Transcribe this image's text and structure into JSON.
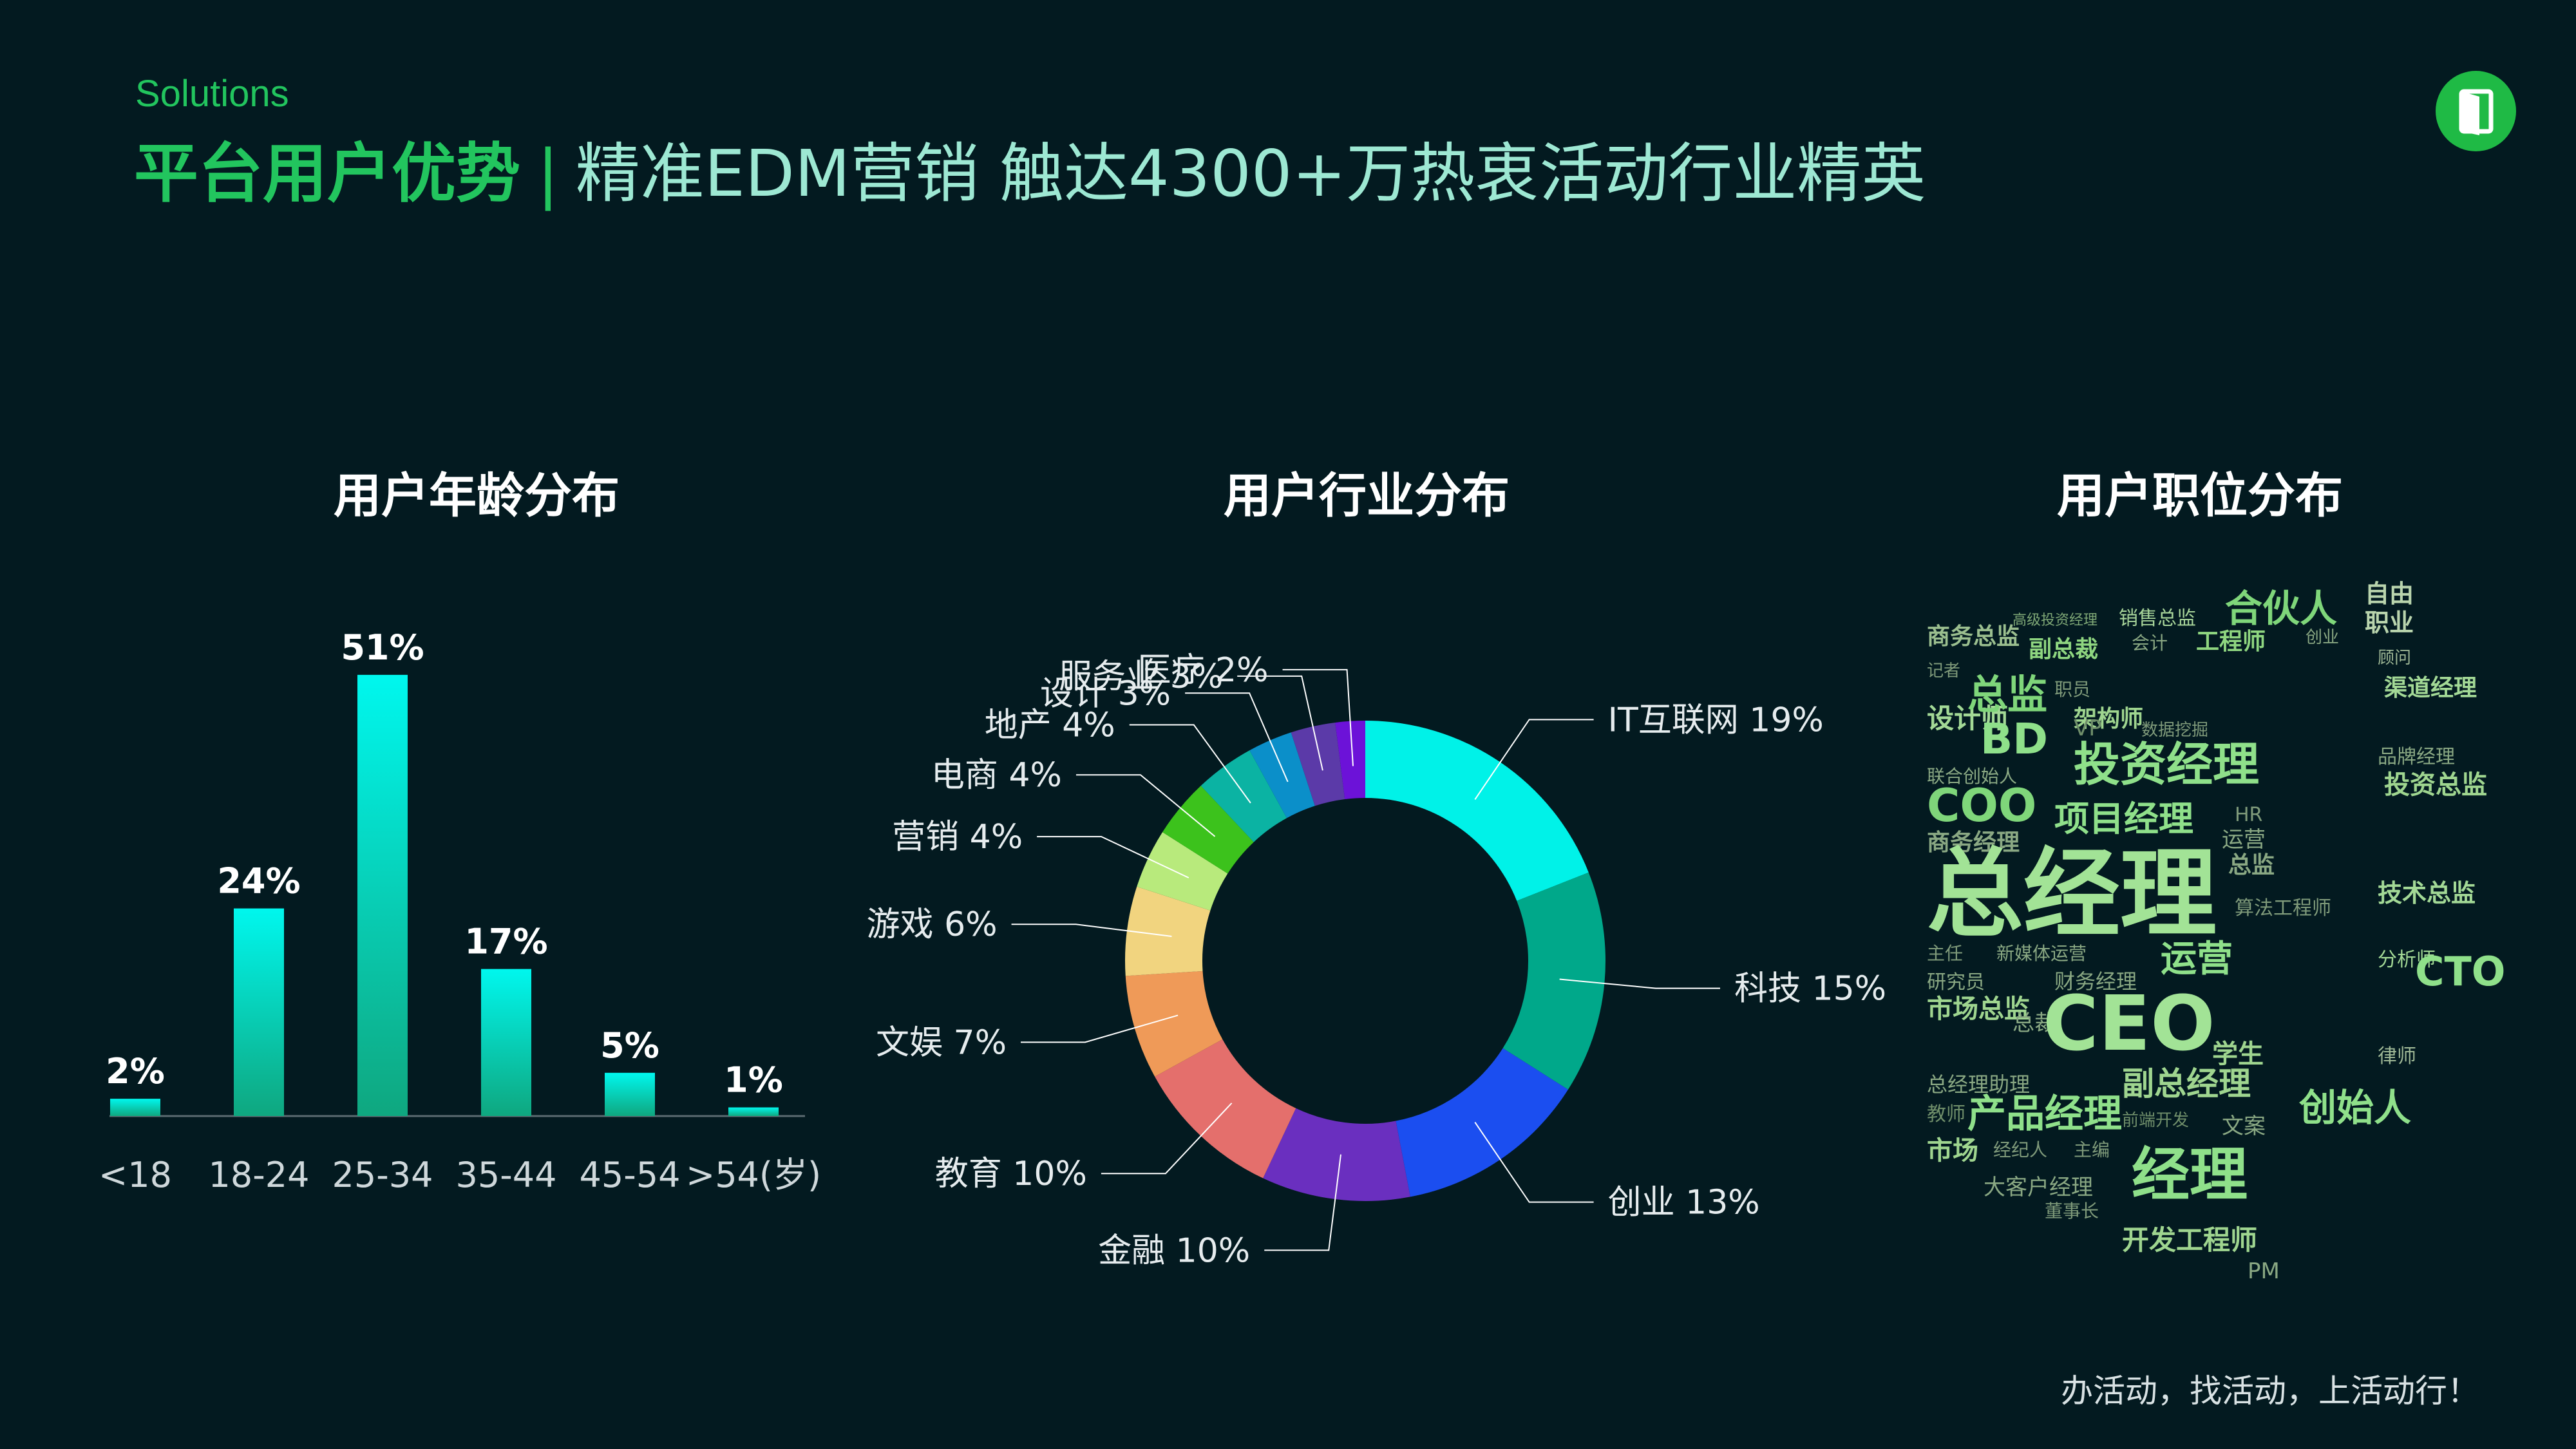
{
  "header": {
    "kicker": "Solutions",
    "title_main": "平台用户优势",
    "title_sep": "|",
    "title_sub": "精准EDM营销 触达4300+万热衷活动行业精英"
  },
  "logo": {
    "icon": "door-icon",
    "color": "#1fba45"
  },
  "footer": {
    "slogan": "办活动，找活动，上活动行！"
  },
  "chart_data": [
    {
      "type": "bar",
      "title": "用户年龄分布",
      "categories": [
        "<18",
        "18-24",
        "25-34",
        "35-44",
        "45-54",
        ">54(岁)"
      ],
      "values": [
        2,
        24,
        51,
        17,
        5,
        1
      ],
      "data_labels": [
        "2%",
        "24%",
        "51%",
        "17%",
        "5%",
        "1%"
      ],
      "ylim": [
        0,
        60
      ],
      "grid": false,
      "colors": {
        "top": "#00f7ee",
        "bottom": "#0fa77f"
      }
    },
    {
      "type": "pie",
      "title": "用户行业分布",
      "donut": true,
      "slices": [
        {
          "label": "IT互联网",
          "value": 19,
          "text": "IT互联网 19%",
          "color": "#00f2e8"
        },
        {
          "label": "科技",
          "value": 15,
          "text": "科技 15%",
          "color": "#00a88a"
        },
        {
          "label": "创业",
          "value": 13,
          "text": "创业 13%",
          "color": "#1b4ef0"
        },
        {
          "label": "金融",
          "value": 10,
          "text": "金融 10%",
          "color": "#6a2fbf"
        },
        {
          "label": "教育",
          "value": 10,
          "text": "教育 10%",
          "color": "#e46f6c"
        },
        {
          "label": "文娱",
          "value": 7,
          "text": "文娱 7%",
          "color": "#ef9a58"
        },
        {
          "label": "游戏",
          "value": 6,
          "text": "游戏 6%",
          "color": "#f1d47f"
        },
        {
          "label": "营销",
          "value": 4,
          "text": "营销 4%",
          "color": "#b8ea7c"
        },
        {
          "label": "电商",
          "value": 4,
          "text": "电商 4%",
          "color": "#3cc21c"
        },
        {
          "label": "地产",
          "value": 4,
          "text": "地产 4%",
          "color": "#0bb3a3"
        },
        {
          "label": "设计",
          "value": 3,
          "text": "设计 3%",
          "color": "#0b8fc9"
        },
        {
          "label": "服务业",
          "value": 3,
          "text": "服务业 3%",
          "color": "#5b3aa8"
        },
        {
          "label": "医疗",
          "value": 2,
          "text": "医疗 2%",
          "color": "#6c12d8"
        }
      ]
    },
    {
      "type": "table",
      "title": "用户职位分布",
      "word_cloud": [
        "商务总监",
        "高级投资经理",
        "销售总监",
        "合伙人",
        "自由",
        "职业",
        "副总裁",
        "会计",
        "工程师",
        "创业",
        "记者",
        "顾问",
        "设计师",
        "总监",
        "职员",
        "渠道经理",
        "架构师",
        "BD",
        "VP",
        "数据挖掘",
        "联合创始人",
        "投资经理",
        "品牌经理",
        "投资总监",
        "COO",
        "HR",
        "项目经理",
        "商务经理",
        "运营",
        "总监",
        "技术总监",
        "总经理",
        "算法工程师",
        "主任",
        "新媒体运营",
        "运营",
        "分析师",
        "CTO",
        "研究员",
        "财务经理",
        "市场总监",
        "总裁",
        "CEO",
        "律师",
        "学生",
        "总经理助理",
        "副总经理",
        "创始人",
        "教师",
        "产品经理",
        "前端开发",
        "文案",
        "市场",
        "经纪人",
        "主编",
        "经理",
        "大客户经理",
        "董事长",
        "开发工程师",
        "PM"
      ]
    }
  ]
}
